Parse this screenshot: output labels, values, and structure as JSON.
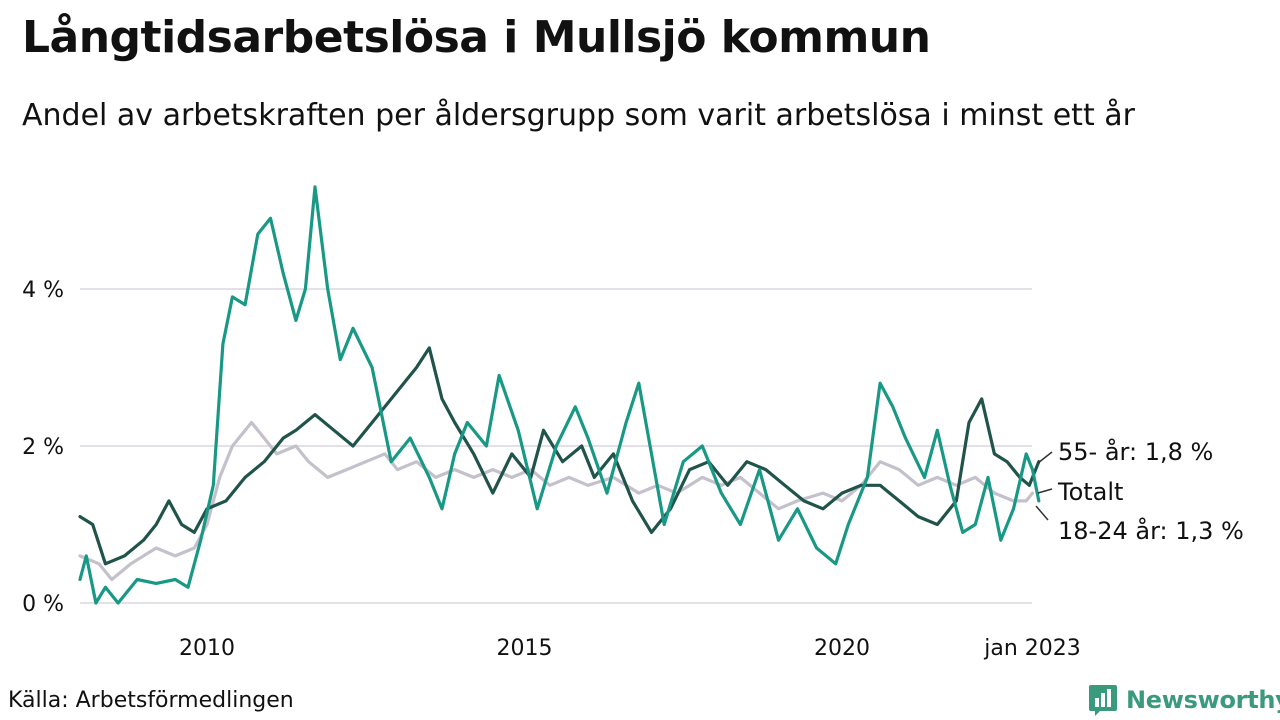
{
  "chart_data": {
    "type": "line",
    "title": "Långtidsarbetslösa i Mullsjö kommun",
    "subtitle": "Andel av arbetskraften per åldersgrupp som varit arbetslösa i minst ett år",
    "source": "Källa: Arbetsförmedlingen",
    "y_ticks": [
      {
        "value": 0,
        "label": "0 %"
      },
      {
        "value": 2,
        "label": "2 %"
      },
      {
        "value": 4,
        "label": "4 %"
      }
    ],
    "x_ticks": [
      {
        "value": 2010,
        "label": "2010"
      },
      {
        "value": 2015,
        "label": "2015"
      },
      {
        "value": 2020,
        "label": "2020"
      },
      {
        "value": 2023,
        "label": "jan 2023"
      }
    ],
    "ylim": [
      0,
      5.4
    ],
    "xlim": [
      2008,
      2023.1
    ],
    "grid": true,
    "series": [
      {
        "name": "Totalt",
        "label": "Totalt",
        "color": "#c4c0cc",
        "points": [
          [
            2008.0,
            0.6
          ],
          [
            2008.3,
            0.5
          ],
          [
            2008.5,
            0.3
          ],
          [
            2008.8,
            0.5
          ],
          [
            2009.2,
            0.7
          ],
          [
            2009.5,
            0.6
          ],
          [
            2009.8,
            0.7
          ],
          [
            2010.0,
            1.0
          ],
          [
            2010.2,
            1.6
          ],
          [
            2010.4,
            2.0
          ],
          [
            2010.7,
            2.3
          ],
          [
            2010.9,
            2.1
          ],
          [
            2011.1,
            1.9
          ],
          [
            2011.4,
            2.0
          ],
          [
            2011.6,
            1.8
          ],
          [
            2011.9,
            1.6
          ],
          [
            2012.2,
            1.7
          ],
          [
            2012.5,
            1.8
          ],
          [
            2012.8,
            1.9
          ],
          [
            2013.0,
            1.7
          ],
          [
            2013.3,
            1.8
          ],
          [
            2013.6,
            1.6
          ],
          [
            2013.9,
            1.7
          ],
          [
            2014.2,
            1.6
          ],
          [
            2014.5,
            1.7
          ],
          [
            2014.8,
            1.6
          ],
          [
            2015.1,
            1.7
          ],
          [
            2015.4,
            1.5
          ],
          [
            2015.7,
            1.6
          ],
          [
            2016.0,
            1.5
          ],
          [
            2016.4,
            1.6
          ],
          [
            2016.8,
            1.4
          ],
          [
            2017.1,
            1.5
          ],
          [
            2017.4,
            1.4
          ],
          [
            2017.8,
            1.6
          ],
          [
            2018.1,
            1.5
          ],
          [
            2018.4,
            1.6
          ],
          [
            2018.7,
            1.4
          ],
          [
            2019.0,
            1.2
          ],
          [
            2019.3,
            1.3
          ],
          [
            2019.7,
            1.4
          ],
          [
            2020.0,
            1.3
          ],
          [
            2020.3,
            1.5
          ],
          [
            2020.6,
            1.8
          ],
          [
            2020.9,
            1.7
          ],
          [
            2021.2,
            1.5
          ],
          [
            2021.5,
            1.6
          ],
          [
            2021.8,
            1.5
          ],
          [
            2022.1,
            1.6
          ],
          [
            2022.4,
            1.4
          ],
          [
            2022.7,
            1.3
          ],
          [
            2022.9,
            1.3
          ],
          [
            2023.0,
            1.4
          ]
        ]
      },
      {
        "name": "55- år",
        "label": "55- år: 1,8 %",
        "color": "#20544a",
        "points": [
          [
            2008.0,
            1.1
          ],
          [
            2008.2,
            1.0
          ],
          [
            2008.4,
            0.5
          ],
          [
            2008.7,
            0.6
          ],
          [
            2009.0,
            0.8
          ],
          [
            2009.2,
            1.0
          ],
          [
            2009.4,
            1.3
          ],
          [
            2009.6,
            1.0
          ],
          [
            2009.8,
            0.9
          ],
          [
            2010.0,
            1.2
          ],
          [
            2010.3,
            1.3
          ],
          [
            2010.6,
            1.6
          ],
          [
            2010.9,
            1.8
          ],
          [
            2011.2,
            2.1
          ],
          [
            2011.4,
            2.2
          ],
          [
            2011.7,
            2.4
          ],
          [
            2012.0,
            2.2
          ],
          [
            2012.3,
            2.0
          ],
          [
            2012.6,
            2.3
          ],
          [
            2012.9,
            2.6
          ],
          [
            2013.1,
            2.8
          ],
          [
            2013.3,
            3.0
          ],
          [
            2013.5,
            3.25
          ],
          [
            2013.7,
            2.6
          ],
          [
            2013.9,
            2.3
          ],
          [
            2014.2,
            1.9
          ],
          [
            2014.5,
            1.4
          ],
          [
            2014.8,
            1.9
          ],
          [
            2015.1,
            1.6
          ],
          [
            2015.3,
            2.2
          ],
          [
            2015.6,
            1.8
          ],
          [
            2015.9,
            2.0
          ],
          [
            2016.1,
            1.6
          ],
          [
            2016.4,
            1.9
          ],
          [
            2016.7,
            1.3
          ],
          [
            2017.0,
            0.9
          ],
          [
            2017.3,
            1.2
          ],
          [
            2017.6,
            1.7
          ],
          [
            2017.9,
            1.8
          ],
          [
            2018.2,
            1.5
          ],
          [
            2018.5,
            1.8
          ],
          [
            2018.8,
            1.7
          ],
          [
            2019.1,
            1.5
          ],
          [
            2019.4,
            1.3
          ],
          [
            2019.7,
            1.2
          ],
          [
            2020.0,
            1.4
          ],
          [
            2020.3,
            1.5
          ],
          [
            2020.6,
            1.5
          ],
          [
            2020.9,
            1.3
          ],
          [
            2021.2,
            1.1
          ],
          [
            2021.5,
            1.0
          ],
          [
            2021.8,
            1.3
          ],
          [
            2022.0,
            2.3
          ],
          [
            2022.2,
            2.6
          ],
          [
            2022.4,
            1.9
          ],
          [
            2022.6,
            1.8
          ],
          [
            2022.8,
            1.6
          ],
          [
            2022.95,
            1.5
          ],
          [
            2023.1,
            1.8
          ]
        ]
      },
      {
        "name": "18-24 år",
        "label": "18-24 år: 1,3 %",
        "color": "#199985",
        "points": [
          [
            2008.0,
            0.3
          ],
          [
            2008.1,
            0.6
          ],
          [
            2008.25,
            0.0
          ],
          [
            2008.4,
            0.2
          ],
          [
            2008.6,
            0.0
          ],
          [
            2008.9,
            0.3
          ],
          [
            2009.2,
            0.25
          ],
          [
            2009.5,
            0.3
          ],
          [
            2009.7,
            0.2
          ],
          [
            2009.9,
            0.8
          ],
          [
            2010.1,
            1.5
          ],
          [
            2010.25,
            3.3
          ],
          [
            2010.4,
            3.9
          ],
          [
            2010.6,
            3.8
          ],
          [
            2010.8,
            4.7
          ],
          [
            2011.0,
            4.9
          ],
          [
            2011.2,
            4.2
          ],
          [
            2011.4,
            3.6
          ],
          [
            2011.55,
            4.0
          ],
          [
            2011.7,
            5.3
          ],
          [
            2011.9,
            4.0
          ],
          [
            2012.1,
            3.1
          ],
          [
            2012.3,
            3.5
          ],
          [
            2012.6,
            3.0
          ],
          [
            2012.9,
            1.8
          ],
          [
            2013.2,
            2.1
          ],
          [
            2013.5,
            1.6
          ],
          [
            2013.7,
            1.2
          ],
          [
            2013.9,
            1.9
          ],
          [
            2014.1,
            2.3
          ],
          [
            2014.4,
            2.0
          ],
          [
            2014.6,
            2.9
          ],
          [
            2014.9,
            2.2
          ],
          [
            2015.2,
            1.2
          ],
          [
            2015.5,
            2.0
          ],
          [
            2015.8,
            2.5
          ],
          [
            2016.0,
            2.1
          ],
          [
            2016.3,
            1.4
          ],
          [
            2016.6,
            2.3
          ],
          [
            2016.8,
            2.8
          ],
          [
            2017.0,
            1.9
          ],
          [
            2017.2,
            1.0
          ],
          [
            2017.5,
            1.8
          ],
          [
            2017.8,
            2.0
          ],
          [
            2018.1,
            1.4
          ],
          [
            2018.4,
            1.0
          ],
          [
            2018.7,
            1.7
          ],
          [
            2019.0,
            0.8
          ],
          [
            2019.3,
            1.2
          ],
          [
            2019.6,
            0.7
          ],
          [
            2019.9,
            0.5
          ],
          [
            2020.1,
            1.0
          ],
          [
            2020.4,
            1.6
          ],
          [
            2020.6,
            2.8
          ],
          [
            2020.8,
            2.5
          ],
          [
            2021.0,
            2.1
          ],
          [
            2021.3,
            1.6
          ],
          [
            2021.5,
            2.2
          ],
          [
            2021.7,
            1.5
          ],
          [
            2021.9,
            0.9
          ],
          [
            2022.1,
            1.0
          ],
          [
            2022.3,
            1.6
          ],
          [
            2022.5,
            0.8
          ],
          [
            2022.7,
            1.2
          ],
          [
            2022.9,
            1.9
          ],
          [
            2023.0,
            1.7
          ],
          [
            2023.1,
            1.3
          ]
        ]
      }
    ]
  },
  "brand": "Newsworthy",
  "colors": {
    "grid": "#e3e0e8",
    "brand": "#3a9a7e",
    "text": "#111111"
  }
}
